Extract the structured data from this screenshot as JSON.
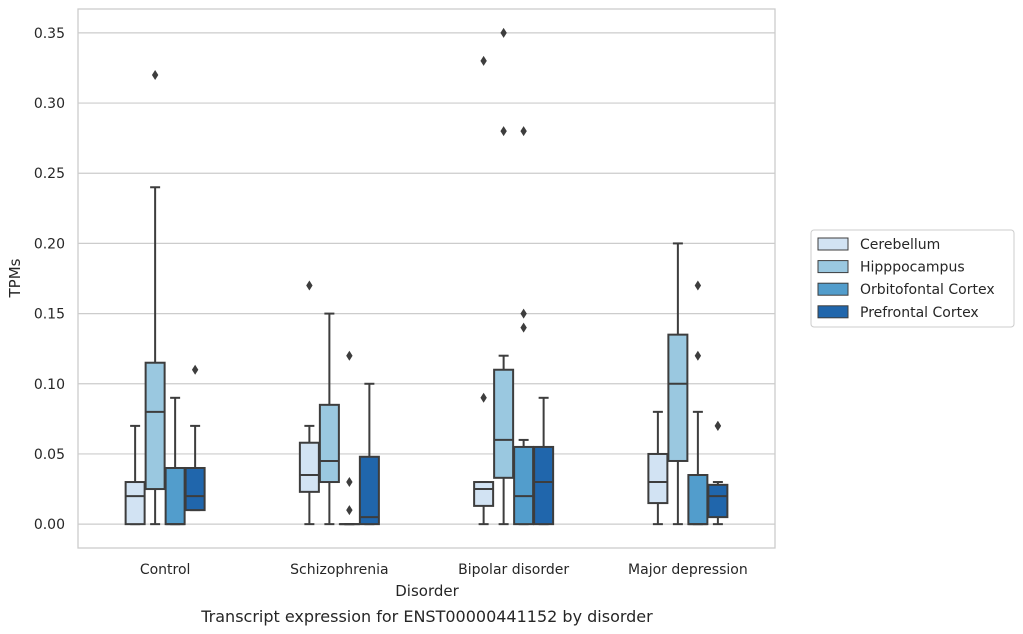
{
  "chart_data": {
    "type": "box",
    "caption": "Transcript expression for ENST00000441152 by disorder",
    "xlabel": "Disorder",
    "ylabel": "TPMs",
    "ylim": [
      -0.017,
      0.367
    ],
    "yticks": [
      0.0,
      0.05,
      0.1,
      0.15,
      0.2,
      0.25,
      0.3,
      0.35
    ],
    "ytick_labels": [
      "0.00",
      "0.05",
      "0.10",
      "0.15",
      "0.20",
      "0.25",
      "0.30",
      "0.35"
    ],
    "grid": "horizontal",
    "legend_position": "right",
    "categories": [
      "Control",
      "Schizophrenia",
      "Bipolar disorder",
      "Major depression"
    ],
    "series": [
      {
        "name": "Cerebellum",
        "color": "#d2e3f3",
        "boxes": [
          {
            "wlo": 0.0,
            "q1": 0.0,
            "med": 0.02,
            "q3": 0.03,
            "whi": 0.07,
            "fliers": []
          },
          {
            "wlo": 0.0,
            "q1": 0.023,
            "med": 0.035,
            "q3": 0.058,
            "whi": 0.07,
            "fliers": [
              0.17
            ]
          },
          {
            "wlo": 0.0,
            "q1": 0.013,
            "med": 0.025,
            "q3": 0.03,
            "whi": 0.03,
            "fliers": [
              0.09,
              0.33
            ]
          },
          {
            "wlo": 0.0,
            "q1": 0.015,
            "med": 0.03,
            "q3": 0.05,
            "whi": 0.08,
            "fliers": []
          }
        ]
      },
      {
        "name": "Hipppocampus",
        "color": "#9ac8e0",
        "boxes": [
          {
            "wlo": 0.0,
            "q1": 0.025,
            "med": 0.08,
            "q3": 0.115,
            "whi": 0.24,
            "fliers": [
              0.32
            ]
          },
          {
            "wlo": 0.0,
            "q1": 0.03,
            "med": 0.045,
            "q3": 0.085,
            "whi": 0.15,
            "fliers": []
          },
          {
            "wlo": 0.0,
            "q1": 0.033,
            "med": 0.06,
            "q3": 0.11,
            "whi": 0.12,
            "fliers": [
              0.28,
              0.35
            ]
          },
          {
            "wlo": 0.0,
            "q1": 0.045,
            "med": 0.1,
            "q3": 0.135,
            "whi": 0.2,
            "fliers": []
          }
        ]
      },
      {
        "name": "Orbitofontal Cortex",
        "color": "#529dcc",
        "boxes": [
          {
            "wlo": 0.0,
            "q1": 0.0,
            "med": 0.0,
            "q3": 0.04,
            "whi": 0.09,
            "fliers": []
          },
          {
            "wlo": 0.0,
            "q1": 0.0,
            "med": 0.0,
            "q3": 0.0,
            "whi": 0.0,
            "fliers": [
              0.01,
              0.03,
              0.12
            ]
          },
          {
            "wlo": 0.0,
            "q1": 0.0,
            "med": 0.02,
            "q3": 0.055,
            "whi": 0.06,
            "fliers": [
              0.14,
              0.15,
              0.28
            ]
          },
          {
            "wlo": 0.0,
            "q1": 0.0,
            "med": 0.0,
            "q3": 0.035,
            "whi": 0.08,
            "fliers": [
              0.12,
              0.17
            ]
          }
        ]
      },
      {
        "name": "Prefrontal Cortex",
        "color": "#2066ac",
        "boxes": [
          {
            "wlo": 0.01,
            "q1": 0.01,
            "med": 0.02,
            "q3": 0.04,
            "whi": 0.07,
            "fliers": [
              0.11
            ]
          },
          {
            "wlo": 0.0,
            "q1": 0.0,
            "med": 0.005,
            "q3": 0.048,
            "whi": 0.1,
            "fliers": []
          },
          {
            "wlo": 0.0,
            "q1": 0.0,
            "med": 0.03,
            "q3": 0.055,
            "whi": 0.09,
            "fliers": []
          },
          {
            "wlo": 0.0,
            "q1": 0.005,
            "med": 0.02,
            "q3": 0.028,
            "whi": 0.03,
            "fliers": [
              0.07,
              0.07
            ]
          }
        ]
      }
    ]
  }
}
